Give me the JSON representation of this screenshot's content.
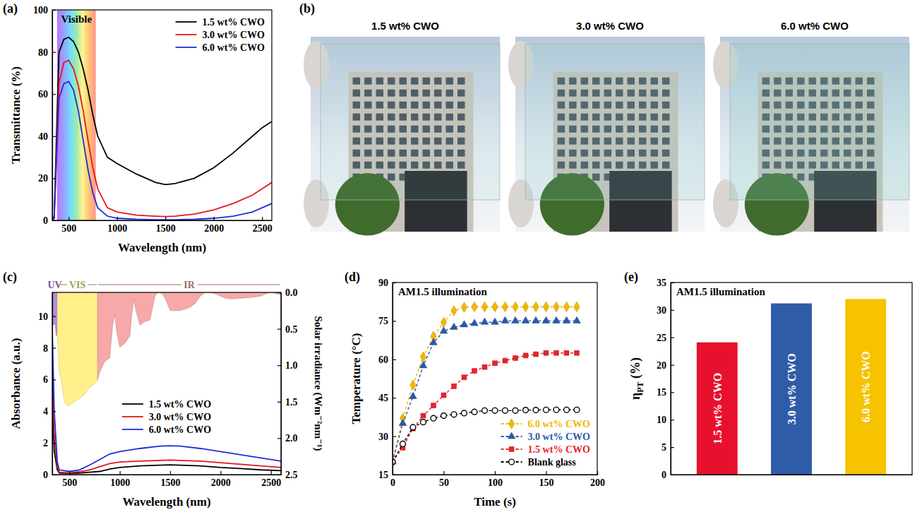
{
  "chart_data": [
    {
      "type": "line",
      "label": "(a)",
      "x_label": "Wavelength (nm)",
      "y_label": "Transmittance (%)",
      "xlim": [
        330,
        2600
      ],
      "xticks": [
        500,
        1000,
        1500,
        2000,
        2500
      ],
      "ylim": [
        0,
        100
      ],
      "yticks": [
        0,
        20,
        40,
        60,
        80,
        100
      ],
      "legend": "upper right",
      "annotations": [
        {
          "text": "Visible",
          "x": [
            380,
            780
          ]
        }
      ],
      "x": [
        330,
        350,
        380,
        400,
        450,
        500,
        550,
        600,
        650,
        700,
        750,
        800,
        900,
        1000,
        1200,
        1400,
        1500,
        1600,
        1800,
        2000,
        2200,
        2400,
        2500,
        2600
      ],
      "series": [
        {
          "name": "1.5 wt% CWO",
          "color": "#000000",
          "values": [
            0,
            2,
            50,
            80,
            86,
            87,
            85,
            80,
            72,
            62,
            50,
            40,
            30,
            27,
            22,
            18,
            17,
            17.5,
            20,
            25,
            32,
            40,
            44,
            47
          ]
        },
        {
          "name": "3.0 wt% CWO",
          "color": "#e8141c",
          "values": [
            0,
            1,
            40,
            65,
            75,
            76,
            72,
            64,
            52,
            38,
            25,
            15,
            6,
            4,
            2.5,
            2,
            1.8,
            2,
            3,
            5,
            8,
            12,
            15,
            18
          ]
        },
        {
          "name": "6.0 wt% CWO",
          "color": "#1f2fd6",
          "values": [
            0,
            1,
            35,
            58,
            65,
            66,
            62,
            52,
            38,
            24,
            13,
            6,
            2,
            1,
            0.5,
            0.3,
            0.3,
            0.3,
            0.5,
            1,
            2,
            4,
            6,
            8
          ]
        }
      ]
    },
    {
      "type": "image",
      "label": "(b)",
      "titles": [
        "1.5 wt% CWO",
        "3.0 wt% CWO",
        "6.0 wt% CWO"
      ]
    },
    {
      "type": "line",
      "label": "(c)",
      "x_label": "Wavelength (nm)",
      "y_label": "Absorbance (a.u.)",
      "y2_label": "Solar irradiance (Wm⁻²nm⁻¹)",
      "xlim": [
        330,
        2600
      ],
      "xticks": [
        500,
        1000,
        1500,
        2000,
        2500
      ],
      "ylim": [
        0,
        11.5
      ],
      "yticks": [
        0,
        2,
        4,
        6,
        8,
        10
      ],
      "y2lim": [
        2.5,
        0
      ],
      "y2ticks": [
        {
          "value": 0,
          "label": "0.0"
        },
        0.5,
        {
          "value": 1,
          "label": "1.0"
        },
        1.5,
        {
          "value": 2,
          "label": "2.0"
        },
        2.5
      ],
      "legend": "lower center",
      "x": [
        330,
        350,
        380,
        400,
        500,
        600,
        700,
        800,
        900,
        1000,
        1200,
        1400,
        1500,
        1600,
        1800,
        2000,
        2200,
        2400,
        2600
      ],
      "series": [
        {
          "name": "1.5 wt% CWO",
          "color": "#000000",
          "values": [
            4.5,
            1.5,
            0.3,
            0.1,
            0.08,
            0.1,
            0.15,
            0.2,
            0.35,
            0.45,
            0.55,
            0.6,
            0.62,
            0.6,
            0.55,
            0.45,
            0.38,
            0.3,
            0.25
          ]
        },
        {
          "name": "3.0 wt% CWO",
          "color": "#e8141c",
          "values": [
            6.5,
            2.5,
            0.5,
            0.15,
            0.12,
            0.18,
            0.3,
            0.5,
            0.7,
            0.8,
            0.85,
            0.9,
            0.92,
            0.9,
            0.85,
            0.75,
            0.65,
            0.55,
            0.45
          ]
        },
        {
          "name": "6.0 wt% CWO",
          "color": "#1f2fd6",
          "values": [
            9,
            4,
            0.8,
            0.3,
            0.2,
            0.3,
            0.6,
            0.95,
            1.3,
            1.45,
            1.65,
            1.8,
            1.82,
            1.8,
            1.65,
            1.45,
            1.25,
            1.05,
            0.85
          ]
        },
        {
          "name": "UV",
          "type": "area",
          "axis": "y2",
          "color": "#b48be0",
          "x": [
            330,
            340,
            350,
            360,
            370,
            380
          ],
          "values": [
            0.35,
            0.45,
            0.42,
            0.45,
            0.6,
            0.55
          ]
        },
        {
          "name": "VIS",
          "type": "area",
          "axis": "y2",
          "color": "#fff08a",
          "x": [
            380,
            400,
            420,
            450,
            480,
            500,
            550,
            600,
            650,
            700,
            750,
            780
          ],
          "values": [
            0.55,
            1.1,
            1.2,
            1.5,
            1.55,
            1.55,
            1.5,
            1.45,
            1.4,
            1.3,
            1.25,
            1.2
          ]
        },
        {
          "name": "IR",
          "type": "area",
          "axis": "y2",
          "color": "#f7a8a8",
          "x": [
            780,
            800,
            850,
            900,
            930,
            950,
            970,
            1000,
            1050,
            1100,
            1120,
            1140,
            1160,
            1200,
            1250,
            1300,
            1350,
            1380,
            1420,
            1450,
            1500,
            1550,
            1600,
            1650,
            1700,
            1750,
            1800,
            1850,
            1900,
            1950,
            2000,
            2050,
            2100,
            2200,
            2300,
            2400,
            2450,
            2500,
            2550,
            2600
          ],
          "values": [
            1.2,
            1.1,
            0.95,
            0.9,
            0.45,
            0.3,
            0.55,
            0.75,
            0.7,
            0.6,
            0.3,
            0.1,
            0.25,
            0.45,
            0.4,
            0.38,
            0.05,
            0.0,
            0.02,
            0.08,
            0.25,
            0.25,
            0.25,
            0.23,
            0.2,
            0.15,
            0.05,
            0.0,
            0.0,
            0.02,
            0.05,
            0.08,
            0.09,
            0.08,
            0.07,
            0.05,
            0.02,
            0.0,
            0.02,
            0.03
          ]
        }
      ]
    },
    {
      "type": "line",
      "label": "(d)",
      "title": "AM1.5 illumination",
      "x_label": "Time (s)",
      "y_label": "Temperature (°C)",
      "xlim": [
        0,
        200
      ],
      "xticks": [
        0,
        50,
        100,
        150,
        200
      ],
      "ylim": [
        15,
        90
      ],
      "yticks": [
        15,
        30,
        45,
        60,
        75,
        90
      ],
      "legend": "lower right",
      "x": [
        0,
        10,
        20,
        30,
        40,
        50,
        60,
        70,
        80,
        90,
        100,
        110,
        120,
        130,
        140,
        150,
        160,
        170,
        180
      ],
      "series": [
        {
          "name": "6.0 wt% CWO",
          "color": "#f2b705",
          "marker": "diamond",
          "line_style": "dashed",
          "values": [
            20,
            37,
            50,
            61,
            69,
            74.5,
            79,
            80.3,
            80.5,
            80.5,
            80.5,
            80.5,
            80.5,
            80.5,
            80.5,
            80.5,
            80.5,
            80.5,
            80.5
          ]
        },
        {
          "name": "3.0 wt% CWO",
          "color": "#2a5aa8",
          "marker": "triangle",
          "line_style": "dashed",
          "values": [
            20,
            35,
            45.5,
            57.5,
            66.5,
            71,
            72.5,
            73.5,
            74,
            74.5,
            74.5,
            75,
            75,
            75,
            75,
            75,
            75,
            75,
            75
          ]
        },
        {
          "name": "1.5 wt% CWO",
          "color": "#e8232a",
          "marker": "square",
          "line_style": "dashed",
          "values": [
            20,
            25.5,
            33,
            38,
            42,
            46,
            49.5,
            53,
            55.5,
            57,
            58.5,
            59.5,
            60.5,
            61.5,
            62,
            62.5,
            62.5,
            62.5,
            62.5
          ]
        },
        {
          "name": "Blank glass",
          "color": "#000000",
          "marker": "circle-open",
          "line_style": "dashed",
          "values": [
            20,
            27,
            33.5,
            35.5,
            37,
            38,
            38.5,
            39,
            39.5,
            40,
            40,
            40,
            40,
            40.2,
            40.2,
            40.3,
            40.3,
            40.3,
            40.3
          ]
        }
      ]
    },
    {
      "type": "bar",
      "label": "(e)",
      "title": "AM1.5 illumination",
      "y_label": "ηPT (%)",
      "categories": [
        "1.5 wt% CWO",
        "3.0 wt% CWO",
        "6.0 wt% CWO"
      ],
      "values": [
        24.1,
        31.2,
        32.0
      ],
      "colors": [
        "#e8112d",
        "#2f5ca8",
        "#f7c200"
      ],
      "ylim": [
        0,
        35
      ],
      "yticks": [
        0,
        5,
        10,
        15,
        20,
        25,
        30,
        35
      ]
    }
  ]
}
